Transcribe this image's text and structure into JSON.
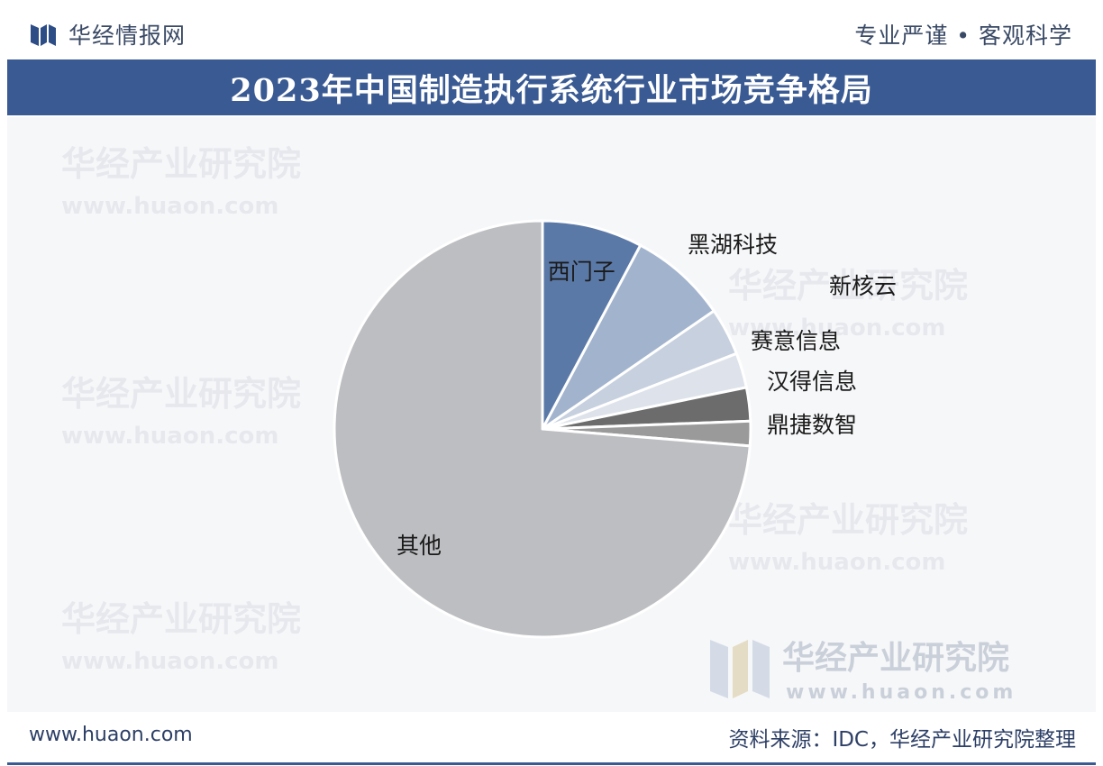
{
  "header": {
    "brand": "华经情报网",
    "tagline": "专业严谨 • 客观科学"
  },
  "chart_data": {
    "type": "pie",
    "title": "2023年中国制造执行系统行业市场竞争格局",
    "start_angle_deg": 0,
    "direction": "clockwise",
    "categories": [
      "西门子",
      "黑湖科技",
      "新核云",
      "赛意信息",
      "汉得信息",
      "鼎捷数智",
      "其他"
    ],
    "values": [
      7.8,
      7.6,
      3.7,
      2.7,
      2.6,
      1.9,
      73.7
    ],
    "colors": [
      "#5b79a7",
      "#a2b3cd",
      "#c7d0de",
      "#dee3eb",
      "#6c6c6c",
      "#9a9a9a",
      "#bdbec1"
    ],
    "legend": "none"
  },
  "watermark": {
    "brand": "华经产业研究院",
    "url": "www.huaon.com"
  },
  "footer": {
    "site": "www.huaon.com",
    "source": "资料来源：IDC，华经产业研究院整理"
  }
}
